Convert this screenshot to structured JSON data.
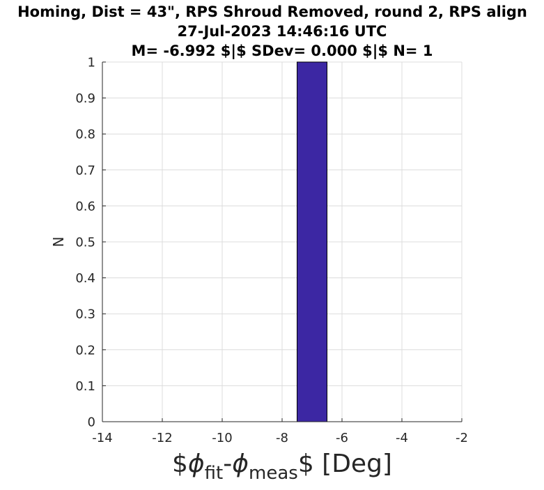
{
  "chart_data": {
    "type": "bar",
    "title_lines": [
      "Homing, Dist = 43\", RPS Shroud Removed, round 2, RPS align",
      "27-Jul-2023 14:46:16 UTC",
      "M= -6.992 $|$ SDev= 0.000 $|$ N= 1"
    ],
    "xlabel": {
      "prefix": "$",
      "phi1": "ϕ",
      "sub1": "fit",
      "dash": "-",
      "phi2": "ϕ",
      "sub2": "meas",
      "suffix": "$ [Deg]"
    },
    "ylabel": "N",
    "xlim": [
      -14,
      -2
    ],
    "ylim": [
      0,
      1
    ],
    "xticks": [
      -14,
      -12,
      -10,
      -8,
      -6,
      -4,
      -2
    ],
    "xtick_labels": [
      "-14",
      "-12",
      "-10",
      "-8",
      "-6",
      "-4",
      "-2"
    ],
    "yticks": [
      0,
      0.1,
      0.2,
      0.3,
      0.4,
      0.5,
      0.6,
      0.7,
      0.8,
      0.9,
      1
    ],
    "ytick_labels": [
      "0",
      "0.1",
      "0.2",
      "0.3",
      "0.4",
      "0.5",
      "0.6",
      "0.7",
      "0.8",
      "0.9",
      "1"
    ],
    "grid": true,
    "bars": [
      {
        "x_start": -7.5,
        "x_end": -6.5,
        "count": 1
      }
    ],
    "bar_color": "#3c27a3",
    "bar_edge_color": "#000000",
    "grid_color": "#dcdcdc",
    "axis_color": "#262626"
  }
}
